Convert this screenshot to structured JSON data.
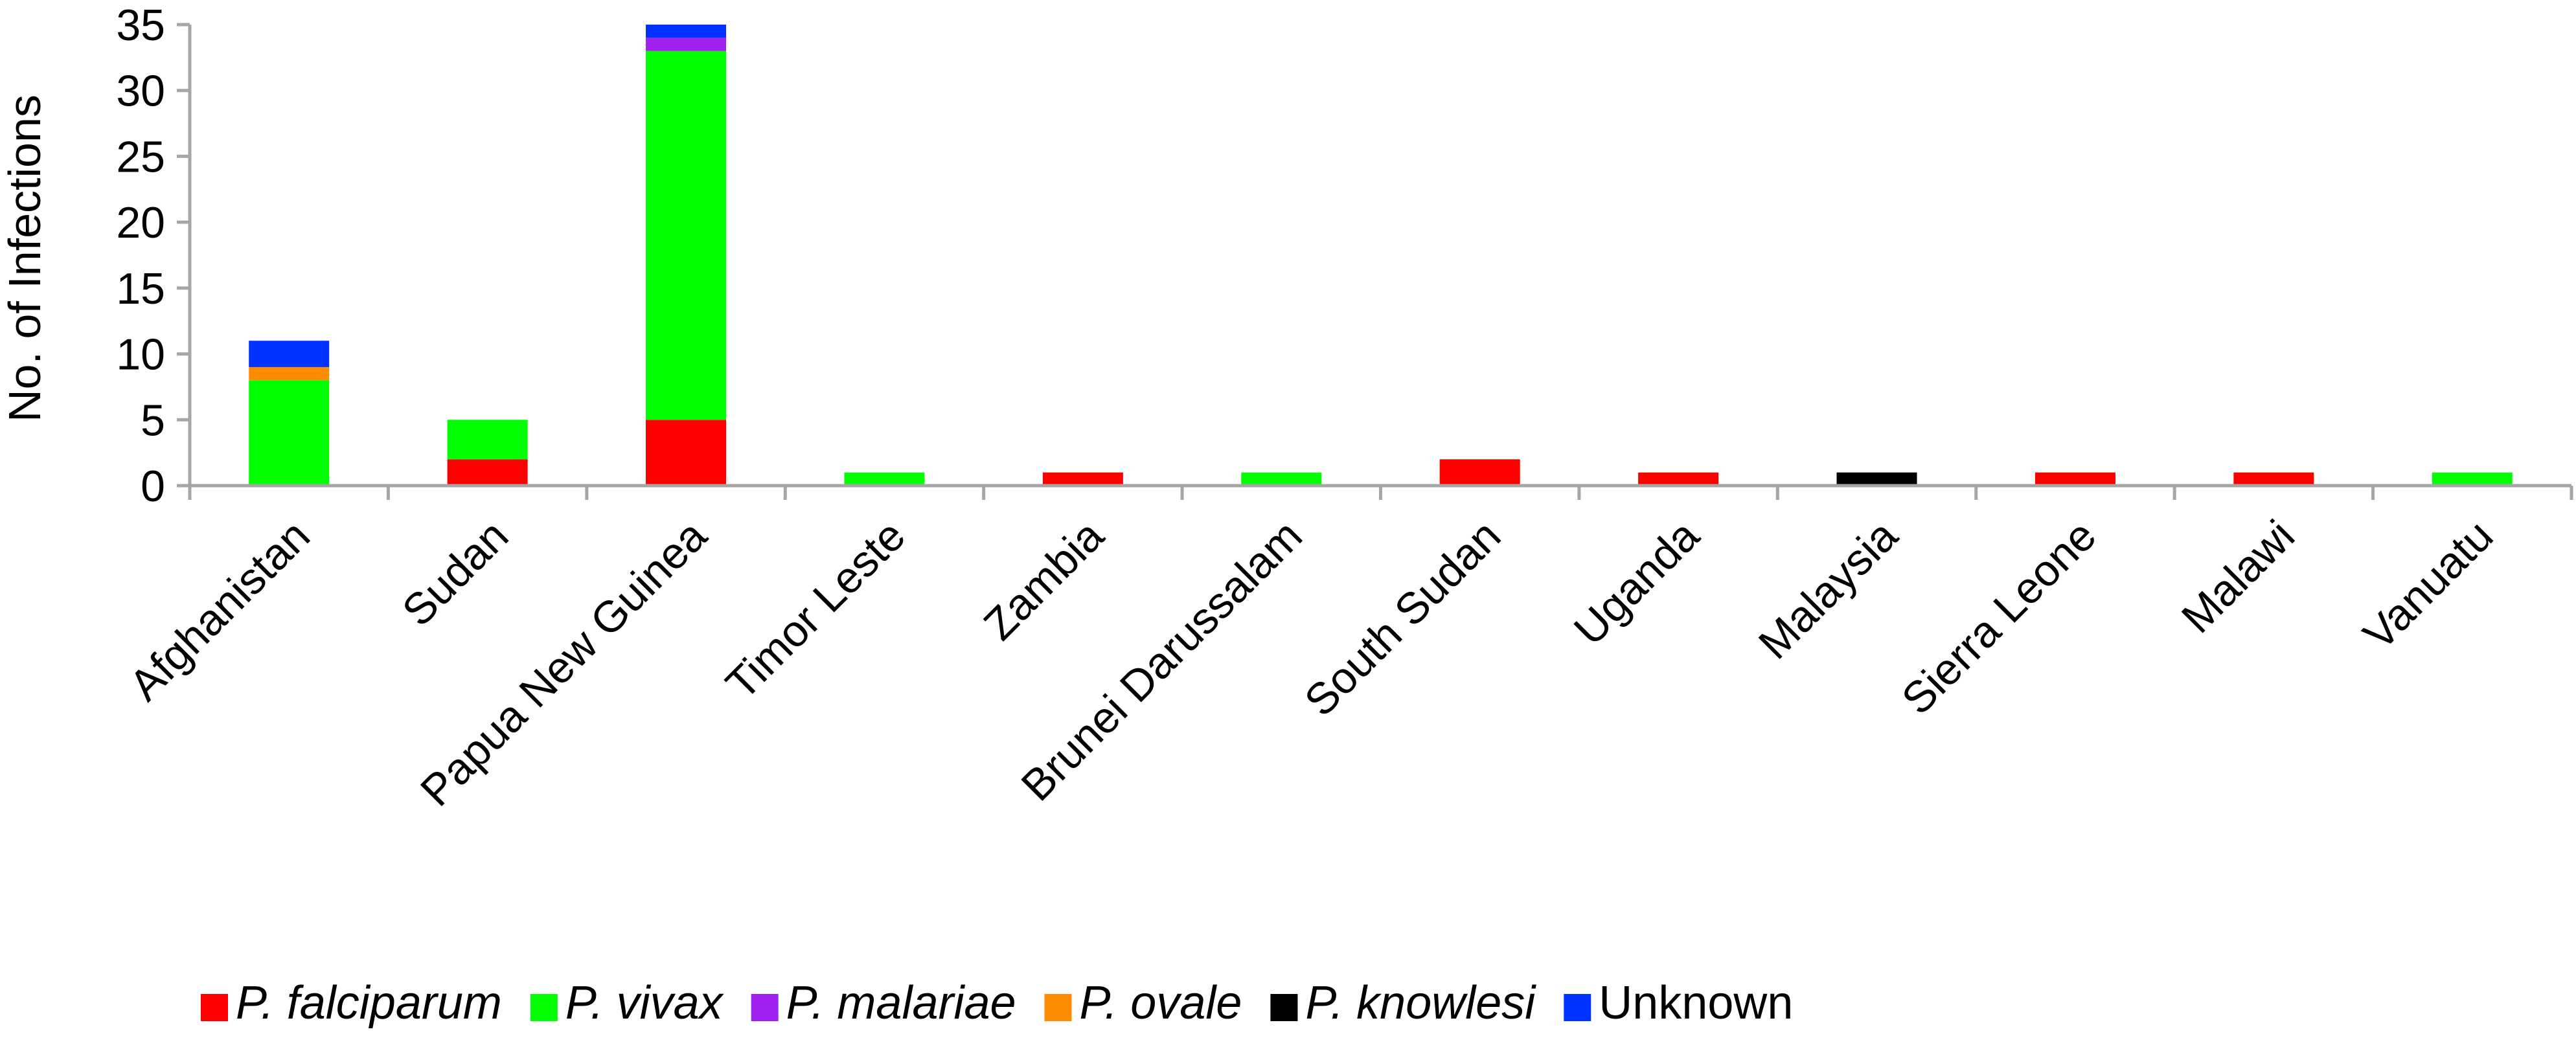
{
  "chart_data": {
    "type": "bar",
    "stacked": true,
    "title": "",
    "xlabel": "",
    "ylabel": "No. of Infections",
    "ylim": [
      0,
      35
    ],
    "yticks": [
      0,
      5,
      10,
      15,
      20,
      25,
      30,
      35
    ],
    "grid": false,
    "legend_position": "bottom",
    "categories": [
      "Afghanistan",
      "Sudan",
      "Papua New Guinea",
      "Timor Leste",
      "Zambia",
      "Brunei Darussalam",
      "South Sudan",
      "Uganda",
      "Malaysia",
      "Sierra Leone",
      "Malawi",
      "Vanuatu"
    ],
    "series": [
      {
        "name": "P. falciparum",
        "italic": true,
        "color": "#ff0000",
        "values": [
          0,
          2,
          5,
          0,
          1,
          0,
          2,
          1,
          0,
          1,
          1,
          0
        ]
      },
      {
        "name": "P. vivax",
        "italic": true,
        "color": "#00ff00",
        "values": [
          8,
          3,
          28,
          1,
          0,
          1,
          0,
          0,
          0,
          0,
          0,
          1
        ]
      },
      {
        "name": "P. malariae",
        "italic": true,
        "color": "#a020f0",
        "values": [
          0,
          0,
          1,
          0,
          0,
          0,
          0,
          0,
          0,
          0,
          0,
          0
        ]
      },
      {
        "name": "P. ovale",
        "italic": true,
        "color": "#ff8c00",
        "values": [
          1,
          0,
          0,
          0,
          0,
          0,
          0,
          0,
          0,
          0,
          0,
          0
        ]
      },
      {
        "name": "P. knowlesi",
        "italic": true,
        "color": "#000000",
        "values": [
          0,
          0,
          0,
          0,
          0,
          0,
          0,
          0,
          1,
          0,
          0,
          0
        ]
      },
      {
        "name": "Unknown",
        "italic": false,
        "color": "#0033ff",
        "values": [
          2,
          0,
          1,
          0,
          0,
          0,
          0,
          0,
          0,
          0,
          0,
          0
        ]
      }
    ]
  }
}
